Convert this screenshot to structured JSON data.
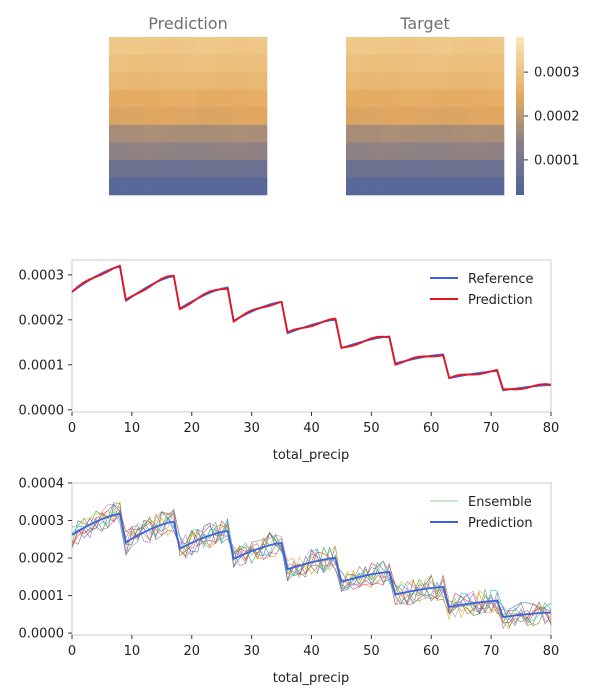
{
  "colors": {
    "reference": "#3a64e0",
    "prediction_line": "#e8141e",
    "ensemble_prediction": "#3a64e0",
    "colormap": [
      "#4f639c",
      "#8a7f85",
      "#e4a95f",
      "#f5dba1"
    ],
    "spine": "#cccccc",
    "title": "#707070"
  },
  "chart_data": [
    {
      "type": "heatmap",
      "title": "Prediction",
      "grid_size": [
        9,
        9
      ],
      "column_gradient": [
        0.0,
        0.0,
        0.0,
        0.0,
        0.0,
        0.0,
        0.0,
        0.0,
        0.0
      ],
      "rows": [
        0.000325,
        0.000305,
        0.000285,
        0.000255,
        0.000235,
        0.000175,
        0.000145,
        8e-05,
        4e-05
      ]
    },
    {
      "type": "heatmap",
      "title": "Target",
      "grid_size": [
        9,
        9
      ],
      "rows": [
        0.000325,
        0.000305,
        0.000285,
        0.000255,
        0.000235,
        0.000175,
        0.000145,
        8e-05,
        4e-05
      ],
      "colorbar": {
        "range": [
          2e-05,
          0.00038
        ],
        "ticks": [
          0.0001,
          0.0002,
          0.0003
        ],
        "tick_labels": [
          "0.0001",
          "0.0002",
          "0.0003"
        ]
      }
    },
    {
      "type": "line",
      "xlabel": "total_precip",
      "xlim": [
        0,
        80
      ],
      "ylim": [
        -5e-06,
        0.000333
      ],
      "x_ticks": [
        0,
        10,
        20,
        30,
        40,
        50,
        60,
        70,
        80
      ],
      "x_tick_labels": [
        "0",
        "10",
        "20",
        "30",
        "40",
        "50",
        "60",
        "70",
        "80"
      ],
      "y_ticks": [
        0.0,
        0.0001,
        0.0002,
        0.0003
      ],
      "y_tick_labels": [
        "0.0000",
        "0.0001",
        "0.0002",
        "0.0003"
      ],
      "legend": "top-right",
      "segments": [
        {
          "x0": 0,
          "x1": 8,
          "start": 0.000262,
          "end": 0.000318
        },
        {
          "x0": 9,
          "x1": 17,
          "start": 0.000242,
          "end": 0.000297
        },
        {
          "x0": 18,
          "x1": 26,
          "start": 0.000225,
          "end": 0.000272
        },
        {
          "x0": 27,
          "x1": 35,
          "start": 0.000198,
          "end": 0.00024
        },
        {
          "x0": 36,
          "x1": 44,
          "start": 0.00017,
          "end": 0.0002
        },
        {
          "x0": 45,
          "x1": 53,
          "start": 0.000137,
          "end": 0.000163
        },
        {
          "x0": 54,
          "x1": 62,
          "start": 0.000103,
          "end": 0.000123
        },
        {
          "x0": 63,
          "x1": 71,
          "start": 7e-05,
          "end": 8.6e-05
        },
        {
          "x0": 72,
          "x1": 80,
          "start": 4.3e-05,
          "end": 5.5e-05
        }
      ],
      "series": [
        {
          "name": "Reference",
          "offset": 0.0
        },
        {
          "name": "Prediction",
          "offset": 3e-06
        }
      ]
    },
    {
      "type": "line",
      "xlabel": "total_precip",
      "xlim": [
        0,
        80
      ],
      "ylim": [
        -5e-06,
        0.0004
      ],
      "x_ticks": [
        0,
        10,
        20,
        30,
        40,
        50,
        60,
        70,
        80
      ],
      "x_tick_labels": [
        "0",
        "10",
        "20",
        "30",
        "40",
        "50",
        "60",
        "70",
        "80"
      ],
      "y_ticks": [
        0.0,
        0.0001,
        0.0002,
        0.0003,
        0.0004
      ],
      "y_tick_labels": [
        "0.0000",
        "0.0001",
        "0.0002",
        "0.0003",
        "0.0004"
      ],
      "legend": "top-right",
      "ensemble_members": 10,
      "ensemble_spread": 3.5e-05,
      "ensemble_colors": [
        "#1f77b4",
        "#ff7f0e",
        "#2ca02c",
        "#d62728",
        "#9467bd",
        "#8c564b",
        "#e377c2",
        "#7f7f7f",
        "#bcbd22",
        "#17becf"
      ],
      "series": [
        {
          "name": "Ensemble"
        },
        {
          "name": "Prediction"
        }
      ]
    }
  ]
}
